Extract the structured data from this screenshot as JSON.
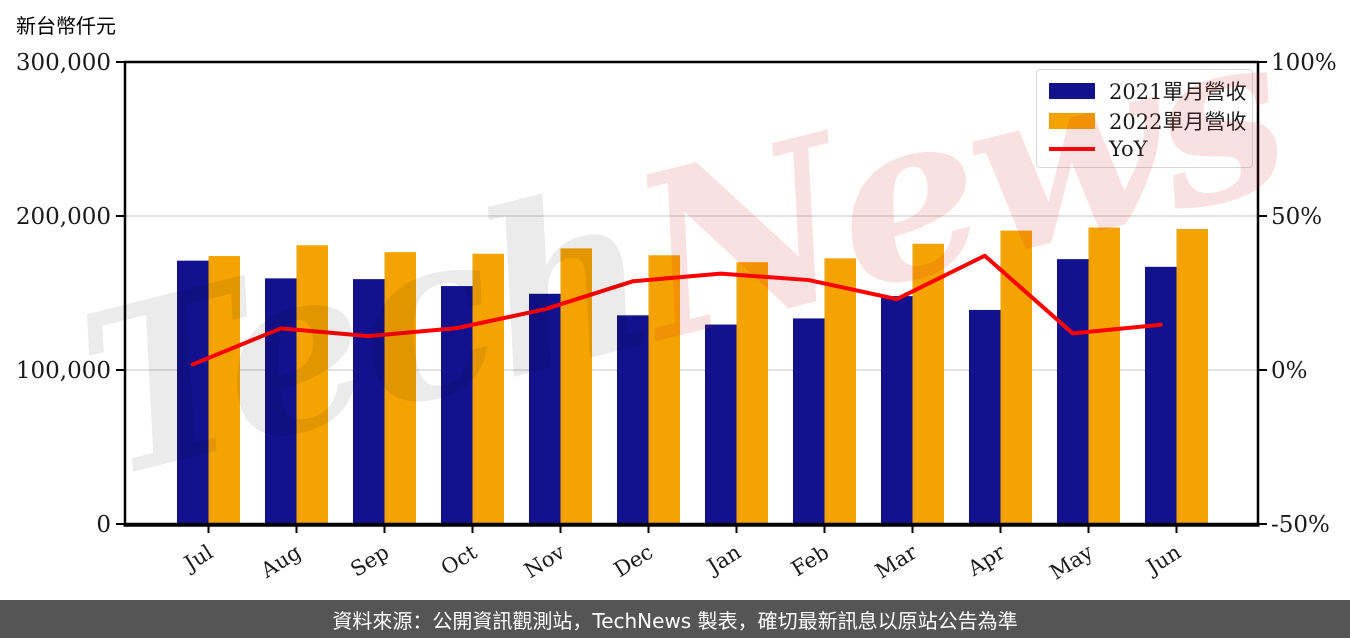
{
  "chart": {
    "unit_label": "新台幣仟元"
  },
  "watermark": {
    "part1": "Tech",
    "part2": "News"
  },
  "footer": {
    "text": "資料來源：公開資訊觀測站，TechNews 製表，確切最新訊息以原站公告為準"
  },
  "chart_data": {
    "type": "bar",
    "title": "新台幣仟元",
    "categories": [
      "Jul",
      "Aug",
      "Sep",
      "Oct",
      "Nov",
      "Dec",
      "Jan",
      "Feb",
      "Mar",
      "Apr",
      "May",
      "Jun"
    ],
    "series": [
      {
        "name": "2021單月營收",
        "type": "bar",
        "axis": "left",
        "color": "#12128F",
        "values": [
          171000,
          159500,
          159000,
          154500,
          149500,
          135500,
          129500,
          133500,
          148000,
          139000,
          172000,
          167000
        ]
      },
      {
        "name": "2022單月營收",
        "type": "bar",
        "axis": "left",
        "color": "#F5A300",
        "values": [
          174000,
          181000,
          176500,
          175500,
          179000,
          174500,
          170000,
          172500,
          182000,
          190500,
          192500,
          191500
        ]
      },
      {
        "name": "YoY",
        "type": "line",
        "axis": "right",
        "color": "#FF0000",
        "unit": "%",
        "values": [
          1.8,
          13.5,
          11.0,
          13.6,
          19.7,
          28.8,
          31.3,
          29.2,
          23.0,
          37.1,
          11.9,
          14.7
        ]
      }
    ],
    "left_axis": {
      "label": "新台幣仟元",
      "range": [
        0,
        300000
      ],
      "ticks": [
        {
          "v": 300000,
          "label": "300,000"
        },
        {
          "v": 200000,
          "label": "200,000"
        },
        {
          "v": 100000,
          "label": "100,000"
        },
        {
          "v": 0,
          "label": "0"
        }
      ]
    },
    "right_axis": {
      "range": [
        -50,
        100
      ],
      "ticks": [
        {
          "v": 100,
          "label": "100%"
        },
        {
          "v": 50,
          "label": "50%"
        },
        {
          "v": 0,
          "label": "0%"
        },
        {
          "v": -50,
          "label": "-50%"
        }
      ]
    },
    "grid": "horizontal",
    "legend_position": "top-right"
  }
}
